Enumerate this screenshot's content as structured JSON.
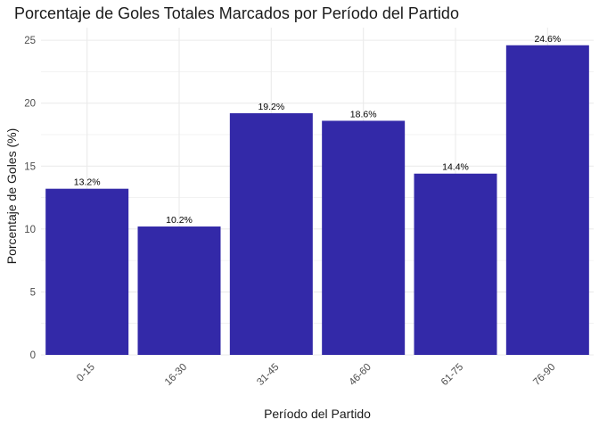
{
  "chart_data": {
    "type": "bar",
    "title": "Porcentaje de Goles Totales Marcados por Período del Partido",
    "xlabel": "Período del Partido",
    "ylabel": "Porcentaje de Goles (%)",
    "categories": [
      "0-15",
      "16-30",
      "31-45",
      "46-60",
      "61-75",
      "76-90"
    ],
    "values": [
      13.2,
      10.2,
      19.2,
      18.6,
      14.4,
      24.6
    ],
    "data_labels": [
      "13.2%",
      "10.2%",
      "19.2%",
      "18.6%",
      "14.4%",
      "24.6%"
    ],
    "ylim": [
      0,
      26
    ],
    "yticks": [
      0,
      5,
      10,
      15,
      20,
      25
    ],
    "ytick_labels": [
      "0",
      "5",
      "10",
      "15",
      "20",
      "25"
    ],
    "grid": true,
    "legend": "none",
    "bar_color": "#3329A8",
    "grid_color": "#EBEBEB",
    "background": "#FFFFFF"
  }
}
